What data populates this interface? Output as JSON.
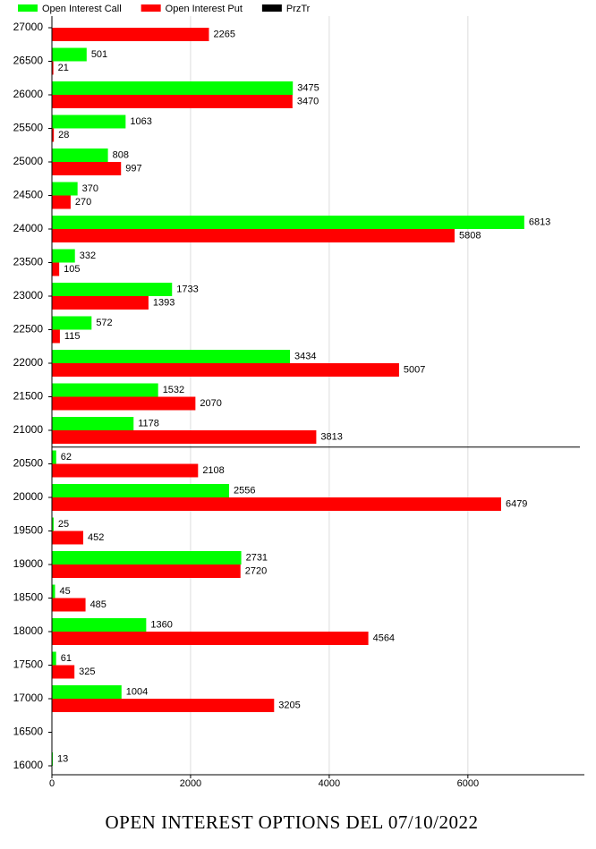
{
  "chart_data": {
    "type": "hbar",
    "title": "OPEN INTEREST OPTIONS DEL 07/10/2022",
    "categories": [
      "27000",
      "26500",
      "26000",
      "25500",
      "25000",
      "24500",
      "24000",
      "23500",
      "23000",
      "22500",
      "22000",
      "21500",
      "21000",
      "20500",
      "20000",
      "19500",
      "19000",
      "18500",
      "18000",
      "17500",
      "17000",
      "16500",
      "16000"
    ],
    "series": [
      {
        "name": "Open Interest Call",
        "color": "#00ff00",
        "values": [
          null,
          501,
          3475,
          1063,
          808,
          370,
          6813,
          332,
          1733,
          572,
          3434,
          1532,
          1178,
          62,
          2556,
          25,
          2731,
          45,
          1360,
          61,
          1004,
          null,
          13
        ]
      },
      {
        "name": "Open Interest Put",
        "color": "#ff0000",
        "values": [
          2265,
          21,
          3470,
          28,
          997,
          270,
          5808,
          105,
          1393,
          115,
          5007,
          2070,
          3813,
          2108,
          6479,
          452,
          2720,
          485,
          4564,
          325,
          3205,
          null,
          null
        ]
      },
      {
        "name": "PrzTr",
        "color": "#000000",
        "level": 20750
      }
    ],
    "xlim": [
      0,
      7680
    ],
    "xticks": [
      0,
      2000,
      4000,
      6000
    ],
    "grid": true
  }
}
